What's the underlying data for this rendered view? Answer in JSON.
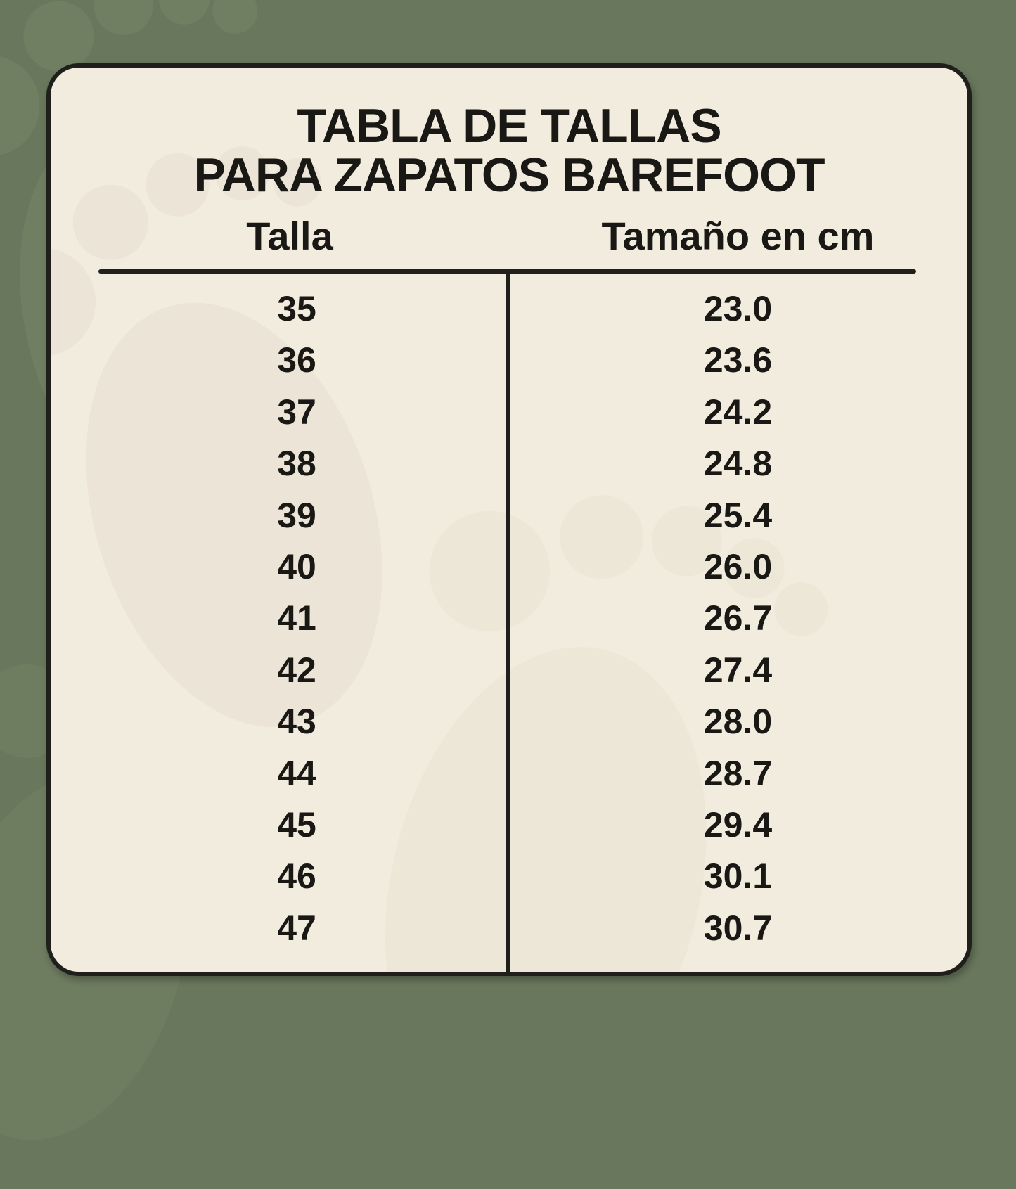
{
  "card": {
    "title_line1": "TABLA DE TALLAS",
    "title_line2": "PARA ZAPATOS BAREFOOT",
    "columns": {
      "talla": "Talla",
      "cm": "Tamaño en cm"
    }
  },
  "chart_data": {
    "type": "table",
    "title": "TABLA DE TALLAS PARA ZAPATOS BAREFOOT",
    "columns": [
      "Talla",
      "Tamaño en cm"
    ],
    "rows": [
      [
        "35",
        "23.0"
      ],
      [
        "36",
        "23.6"
      ],
      [
        "37",
        "24.2"
      ],
      [
        "38",
        "24.8"
      ],
      [
        "39",
        "25.4"
      ],
      [
        "40",
        "26.0"
      ],
      [
        "41",
        "26.7"
      ],
      [
        "42",
        "27.4"
      ],
      [
        "43",
        "28.0"
      ],
      [
        "44",
        "28.7"
      ],
      [
        "45",
        "29.4"
      ],
      [
        "46",
        "30.1"
      ],
      [
        "47",
        "30.7"
      ]
    ]
  },
  "colors": {
    "background_green": "#69785c",
    "card_cream": "#f2ecdf",
    "border_dark": "#201f1c",
    "text_dark": "#191814"
  }
}
